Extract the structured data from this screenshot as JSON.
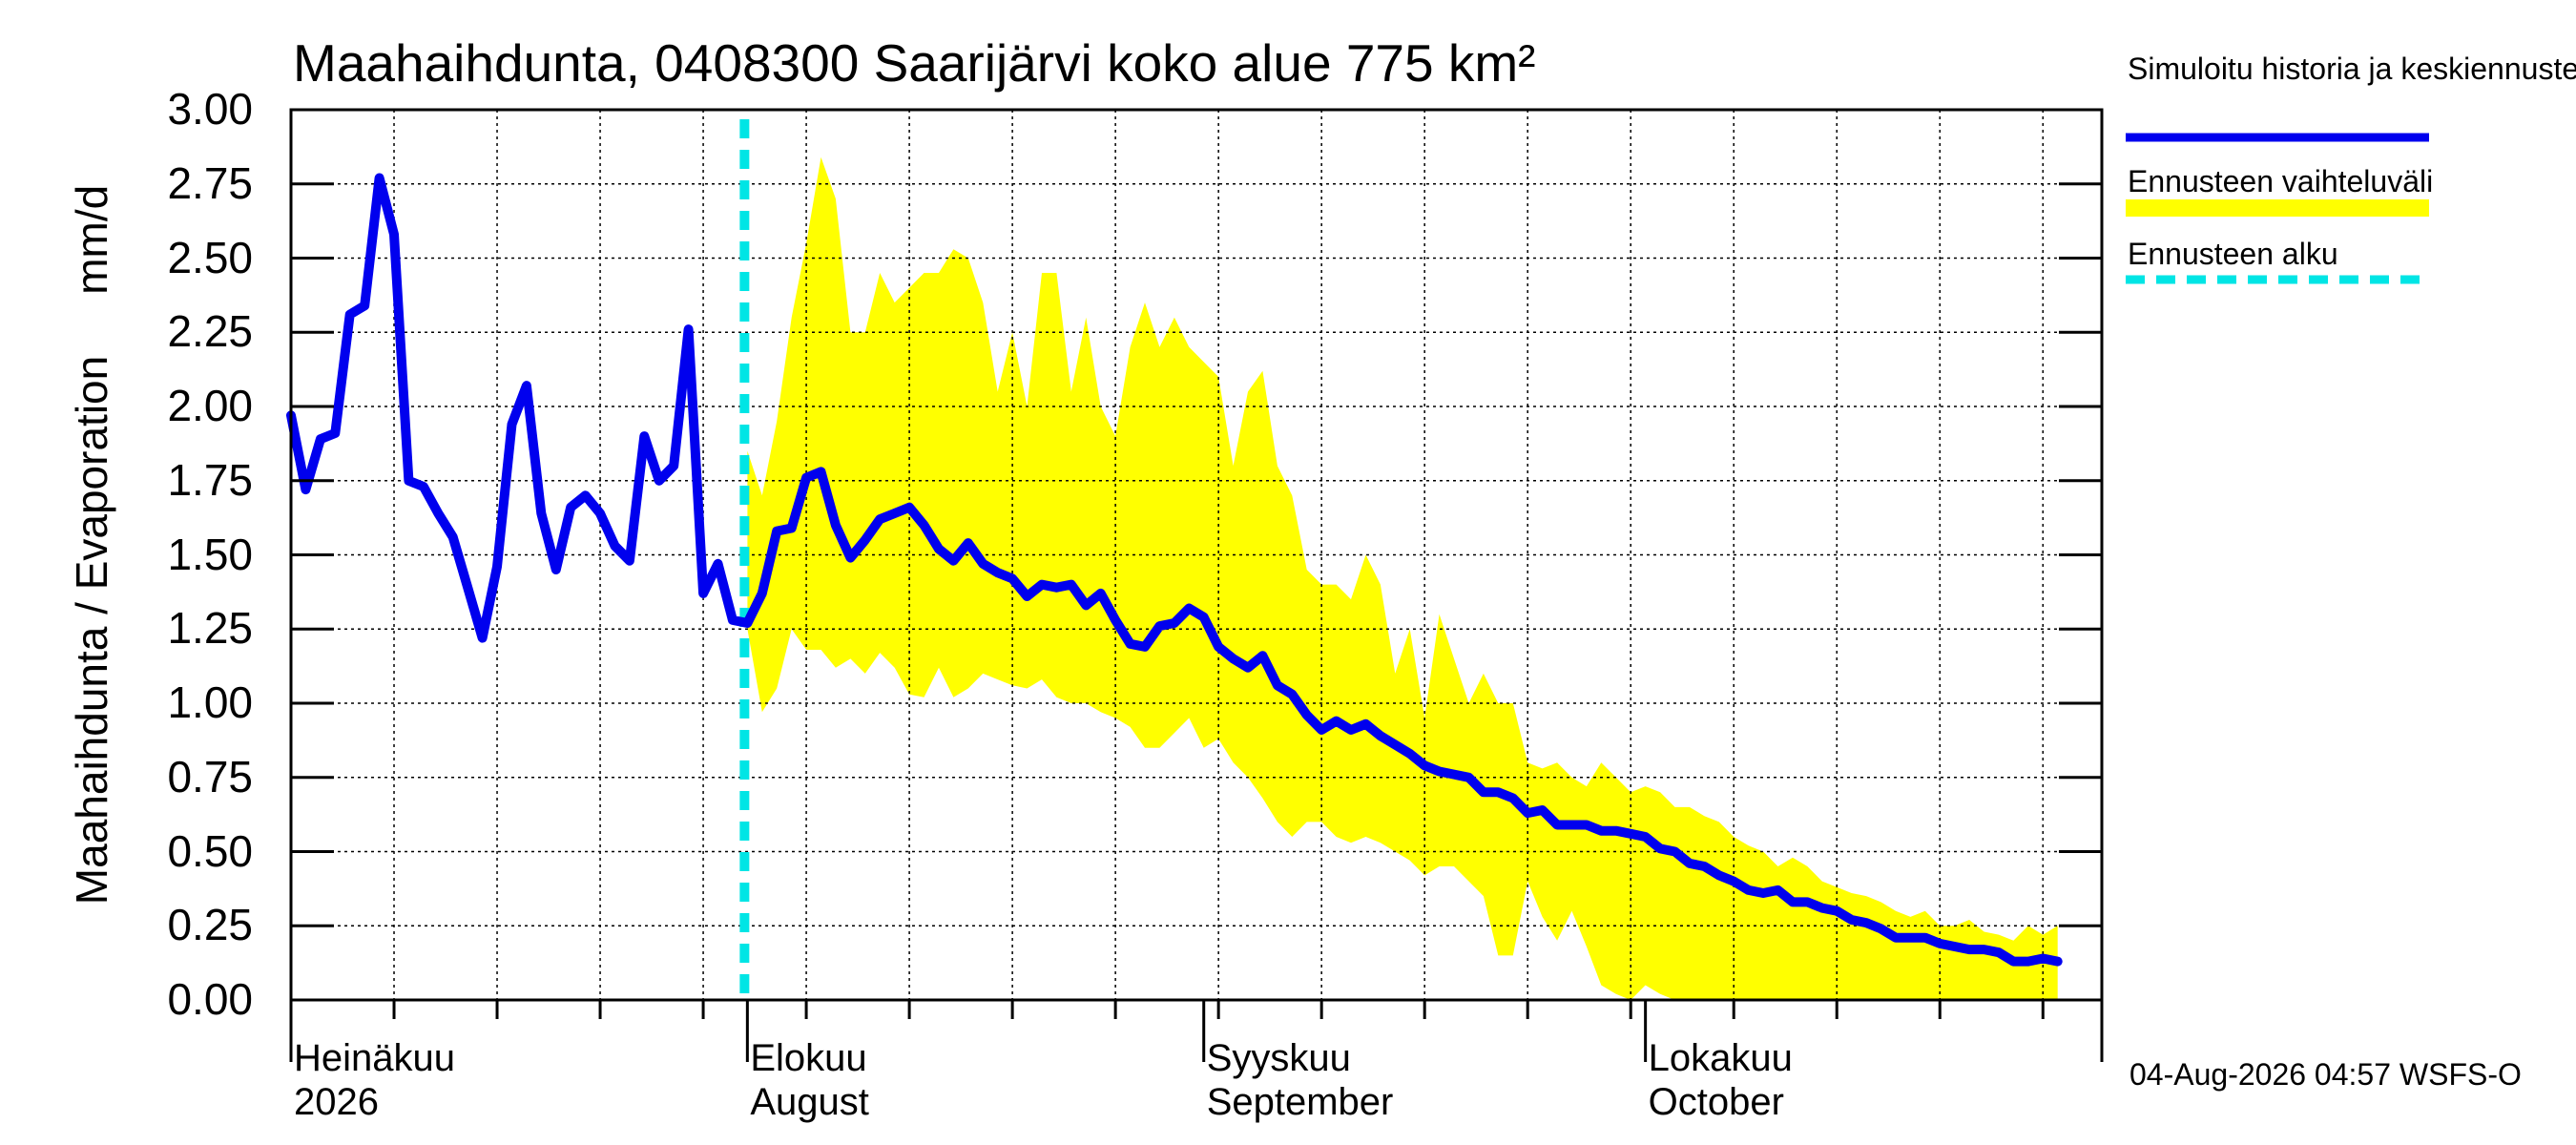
{
  "title": "Maahaihdunta, 0408300 Saarijärvi koko alue 775 km²",
  "ylabel_parts": [
    "Maahaihdunta / Evaporation",
    "mm/d"
  ],
  "legend": {
    "simulated": "Simuloitu historia ja keskiennuste",
    "range": "Ennusteen vaihteluväli",
    "start": "Ennusteen alku"
  },
  "footer": "04-Aug-2026 04:57 WSFS-O",
  "x_months": [
    {
      "fi": "Heinäkuu",
      "en": "2026"
    },
    {
      "fi": "Elokuu",
      "en": "August"
    },
    {
      "fi": "Syyskuu",
      "en": "September"
    },
    {
      "fi": "Lokakuu",
      "en": "October"
    }
  ],
  "colors": {
    "median": "#0000ee",
    "range": "#ffff00",
    "forecast_start": "#00e5e5",
    "grid": "#000000"
  },
  "chart_data": {
    "type": "line",
    "x_start": "2026-07-01",
    "x_end": "2026-11-01",
    "ylim": [
      0,
      3
    ],
    "yticks": [
      "0.00",
      "0.25",
      "0.50",
      "0.75",
      "1.00",
      "1.25",
      "1.50",
      "1.75",
      "2.00",
      "2.25",
      "2.50",
      "2.75",
      "3.00"
    ],
    "grid": true,
    "legend_position": "right",
    "forecast_start": "2026-08-01",
    "series": [
      {
        "name": "Simuloitu historia ja keskiennuste",
        "points": [
          [
            "2026-07-01",
            1.97
          ],
          [
            "2026-07-02",
            1.72
          ],
          [
            "2026-07-03",
            1.89
          ],
          [
            "2026-07-04",
            1.91
          ],
          [
            "2026-07-05",
            2.31
          ],
          [
            "2026-07-06",
            2.34
          ],
          [
            "2026-07-07",
            2.77
          ],
          [
            "2026-07-08",
            2.58
          ],
          [
            "2026-07-09",
            1.75
          ],
          [
            "2026-07-10",
            1.73
          ],
          [
            "2026-07-11",
            1.64
          ],
          [
            "2026-07-12",
            1.56
          ],
          [
            "2026-07-13",
            1.39
          ],
          [
            "2026-07-14",
            1.22
          ],
          [
            "2026-07-15",
            1.46
          ],
          [
            "2026-07-16",
            1.94
          ],
          [
            "2026-07-17",
            2.07
          ],
          [
            "2026-07-18",
            1.64
          ],
          [
            "2026-07-19",
            1.45
          ],
          [
            "2026-07-20",
            1.66
          ],
          [
            "2026-07-21",
            1.7
          ],
          [
            "2026-07-22",
            1.64
          ],
          [
            "2026-07-23",
            1.53
          ],
          [
            "2026-07-24",
            1.48
          ],
          [
            "2026-07-25",
            1.9
          ],
          [
            "2026-07-26",
            1.75
          ],
          [
            "2026-07-27",
            1.8
          ],
          [
            "2026-07-28",
            2.26
          ],
          [
            "2026-07-29",
            1.37
          ],
          [
            "2026-07-30",
            1.47
          ],
          [
            "2026-07-31",
            1.28
          ],
          [
            "2026-08-01",
            1.27
          ],
          [
            "2026-08-02",
            1.37
          ],
          [
            "2026-08-03",
            1.58
          ],
          [
            "2026-08-04",
            1.59
          ],
          [
            "2026-08-05",
            1.76
          ],
          [
            "2026-08-06",
            1.78
          ],
          [
            "2026-08-07",
            1.6
          ],
          [
            "2026-08-08",
            1.49
          ],
          [
            "2026-08-09",
            1.55
          ],
          [
            "2026-08-10",
            1.62
          ],
          [
            "2026-08-11",
            1.64
          ],
          [
            "2026-08-12",
            1.66
          ],
          [
            "2026-08-13",
            1.6
          ],
          [
            "2026-08-14",
            1.52
          ],
          [
            "2026-08-15",
            1.48
          ],
          [
            "2026-08-16",
            1.54
          ],
          [
            "2026-08-17",
            1.47
          ],
          [
            "2026-08-18",
            1.44
          ],
          [
            "2026-08-19",
            1.42
          ],
          [
            "2026-08-20",
            1.36
          ],
          [
            "2026-08-21",
            1.4
          ],
          [
            "2026-08-22",
            1.39
          ],
          [
            "2026-08-23",
            1.4
          ],
          [
            "2026-08-24",
            1.33
          ],
          [
            "2026-08-25",
            1.37
          ],
          [
            "2026-08-26",
            1.28
          ],
          [
            "2026-08-27",
            1.2
          ],
          [
            "2026-08-28",
            1.19
          ],
          [
            "2026-08-29",
            1.26
          ],
          [
            "2026-08-30",
            1.27
          ],
          [
            "2026-08-31",
            1.32
          ],
          [
            "2026-09-01",
            1.29
          ],
          [
            "2026-09-02",
            1.19
          ],
          [
            "2026-09-03",
            1.15
          ],
          [
            "2026-09-04",
            1.12
          ],
          [
            "2026-09-05",
            1.16
          ],
          [
            "2026-09-06",
            1.06
          ],
          [
            "2026-09-07",
            1.03
          ],
          [
            "2026-09-08",
            0.96
          ],
          [
            "2026-09-09",
            0.91
          ],
          [
            "2026-09-10",
            0.94
          ],
          [
            "2026-09-11",
            0.91
          ],
          [
            "2026-09-12",
            0.93
          ],
          [
            "2026-09-13",
            0.89
          ],
          [
            "2026-09-14",
            0.86
          ],
          [
            "2026-09-15",
            0.83
          ],
          [
            "2026-09-16",
            0.79
          ],
          [
            "2026-09-17",
            0.77
          ],
          [
            "2026-09-18",
            0.76
          ],
          [
            "2026-09-19",
            0.75
          ],
          [
            "2026-09-20",
            0.7
          ],
          [
            "2026-09-21",
            0.7
          ],
          [
            "2026-09-22",
            0.68
          ],
          [
            "2026-09-23",
            0.63
          ],
          [
            "2026-09-24",
            0.64
          ],
          [
            "2026-09-25",
            0.59
          ],
          [
            "2026-09-26",
            0.59
          ],
          [
            "2026-09-27",
            0.59
          ],
          [
            "2026-09-28",
            0.57
          ],
          [
            "2026-09-29",
            0.57
          ],
          [
            "2026-09-30",
            0.56
          ],
          [
            "2026-10-01",
            0.55
          ],
          [
            "2026-10-02",
            0.51
          ],
          [
            "2026-10-03",
            0.5
          ],
          [
            "2026-10-04",
            0.46
          ],
          [
            "2026-10-05",
            0.45
          ],
          [
            "2026-10-06",
            0.42
          ],
          [
            "2026-10-07",
            0.4
          ],
          [
            "2026-10-08",
            0.37
          ],
          [
            "2026-10-09",
            0.36
          ],
          [
            "2026-10-10",
            0.37
          ],
          [
            "2026-10-11",
            0.33
          ],
          [
            "2026-10-12",
            0.33
          ],
          [
            "2026-10-13",
            0.31
          ],
          [
            "2026-10-14",
            0.3
          ],
          [
            "2026-10-15",
            0.27
          ],
          [
            "2026-10-16",
            0.26
          ],
          [
            "2026-10-17",
            0.24
          ],
          [
            "2026-10-18",
            0.21
          ],
          [
            "2026-10-19",
            0.21
          ],
          [
            "2026-10-20",
            0.21
          ],
          [
            "2026-10-21",
            0.19
          ],
          [
            "2026-10-22",
            0.18
          ],
          [
            "2026-10-23",
            0.17
          ],
          [
            "2026-10-24",
            0.17
          ],
          [
            "2026-10-25",
            0.16
          ],
          [
            "2026-10-26",
            0.13
          ],
          [
            "2026-10-27",
            0.13
          ],
          [
            "2026-10-28",
            0.14
          ],
          [
            "2026-10-29",
            0.13
          ]
        ]
      },
      {
        "name": "Ennusteen vaihteluväli",
        "kind": "band",
        "points": [
          [
            "2026-08-01",
            1.85,
            1.25
          ],
          [
            "2026-08-02",
            1.7,
            0.97
          ],
          [
            "2026-08-03",
            1.95,
            1.05
          ],
          [
            "2026-08-04",
            2.3,
            1.25
          ],
          [
            "2026-08-05",
            2.55,
            1.18
          ],
          [
            "2026-08-06",
            2.84,
            1.18
          ],
          [
            "2026-08-07",
            2.7,
            1.12
          ],
          [
            "2026-08-08",
            2.25,
            1.15
          ],
          [
            "2026-08-09",
            2.25,
            1.1
          ],
          [
            "2026-08-10",
            2.45,
            1.17
          ],
          [
            "2026-08-11",
            2.35,
            1.12
          ],
          [
            "2026-08-12",
            2.4,
            1.03
          ],
          [
            "2026-08-13",
            2.45,
            1.02
          ],
          [
            "2026-08-14",
            2.45,
            1.12
          ],
          [
            "2026-08-15",
            2.53,
            1.02
          ],
          [
            "2026-08-16",
            2.5,
            1.05
          ],
          [
            "2026-08-17",
            2.35,
            1.1
          ],
          [
            "2026-08-18",
            2.05,
            1.08
          ],
          [
            "2026-08-19",
            2.25,
            1.06
          ],
          [
            "2026-08-20",
            2.0,
            1.05
          ],
          [
            "2026-08-21",
            2.45,
            1.08
          ],
          [
            "2026-08-22",
            2.45,
            1.02
          ],
          [
            "2026-08-23",
            2.05,
            1.0
          ],
          [
            "2026-08-24",
            2.3,
            1.0
          ],
          [
            "2026-08-25",
            2.0,
            0.97
          ],
          [
            "2026-08-26",
            1.9,
            0.95
          ],
          [
            "2026-08-27",
            2.2,
            0.92
          ],
          [
            "2026-08-28",
            2.35,
            0.85
          ],
          [
            "2026-08-29",
            2.2,
            0.85
          ],
          [
            "2026-08-30",
            2.3,
            0.9
          ],
          [
            "2026-08-31",
            2.2,
            0.95
          ],
          [
            "2026-09-01",
            2.15,
            0.85
          ],
          [
            "2026-09-02",
            2.1,
            0.88
          ],
          [
            "2026-09-03",
            1.8,
            0.8
          ],
          [
            "2026-09-04",
            2.05,
            0.75
          ],
          [
            "2026-09-05",
            2.12,
            0.68
          ],
          [
            "2026-09-06",
            1.8,
            0.6
          ],
          [
            "2026-09-07",
            1.7,
            0.55
          ],
          [
            "2026-09-08",
            1.45,
            0.6
          ],
          [
            "2026-09-09",
            1.4,
            0.6
          ],
          [
            "2026-09-10",
            1.4,
            0.55
          ],
          [
            "2026-09-11",
            1.35,
            0.53
          ],
          [
            "2026-09-12",
            1.5,
            0.55
          ],
          [
            "2026-09-13",
            1.4,
            0.53
          ],
          [
            "2026-09-14",
            1.1,
            0.5
          ],
          [
            "2026-09-15",
            1.25,
            0.47
          ],
          [
            "2026-09-16",
            0.95,
            0.42
          ],
          [
            "2026-09-17",
            1.3,
            0.45
          ],
          [
            "2026-09-18",
            1.15,
            0.45
          ],
          [
            "2026-09-19",
            1.0,
            0.4
          ],
          [
            "2026-09-20",
            1.1,
            0.35
          ],
          [
            "2026-09-21",
            1.0,
            0.15
          ],
          [
            "2026-09-22",
            1.0,
            0.15
          ],
          [
            "2026-09-23",
            0.8,
            0.4
          ],
          [
            "2026-09-24",
            0.78,
            0.28
          ],
          [
            "2026-09-25",
            0.8,
            0.2
          ],
          [
            "2026-09-26",
            0.75,
            0.3
          ],
          [
            "2026-09-27",
            0.72,
            0.18
          ],
          [
            "2026-09-28",
            0.8,
            0.05
          ],
          [
            "2026-09-29",
            0.75,
            0.02
          ],
          [
            "2026-09-30",
            0.7,
            0.0
          ],
          [
            "2026-10-01",
            0.72,
            0.05
          ],
          [
            "2026-10-02",
            0.7,
            0.02
          ],
          [
            "2026-10-03",
            0.65,
            0.0
          ],
          [
            "2026-10-04",
            0.65,
            0.0
          ],
          [
            "2026-10-05",
            0.62,
            0.0
          ],
          [
            "2026-10-06",
            0.6,
            0.0
          ],
          [
            "2026-10-07",
            0.55,
            0.0
          ],
          [
            "2026-10-08",
            0.52,
            0.0
          ],
          [
            "2026-10-09",
            0.5,
            0.0
          ],
          [
            "2026-10-10",
            0.45,
            0.0
          ],
          [
            "2026-10-11",
            0.48,
            0.0
          ],
          [
            "2026-10-12",
            0.45,
            0.0
          ],
          [
            "2026-10-13",
            0.4,
            0.0
          ],
          [
            "2026-10-14",
            0.38,
            0.0
          ],
          [
            "2026-10-15",
            0.36,
            0.0
          ],
          [
            "2026-10-16",
            0.35,
            0.0
          ],
          [
            "2026-10-17",
            0.33,
            0.0
          ],
          [
            "2026-10-18",
            0.3,
            0.0
          ],
          [
            "2026-10-19",
            0.28,
            0.0
          ],
          [
            "2026-10-20",
            0.3,
            0.0
          ],
          [
            "2026-10-21",
            0.25,
            0.0
          ],
          [
            "2026-10-22",
            0.25,
            0.0
          ],
          [
            "2026-10-23",
            0.27,
            0.0
          ],
          [
            "2026-10-24",
            0.23,
            0.0
          ],
          [
            "2026-10-25",
            0.22,
            0.0
          ],
          [
            "2026-10-26",
            0.2,
            0.0
          ],
          [
            "2026-10-27",
            0.25,
            0.0
          ],
          [
            "2026-10-28",
            0.22,
            0.0
          ],
          [
            "2026-10-29",
            0.25,
            0.0
          ]
        ]
      }
    ]
  }
}
